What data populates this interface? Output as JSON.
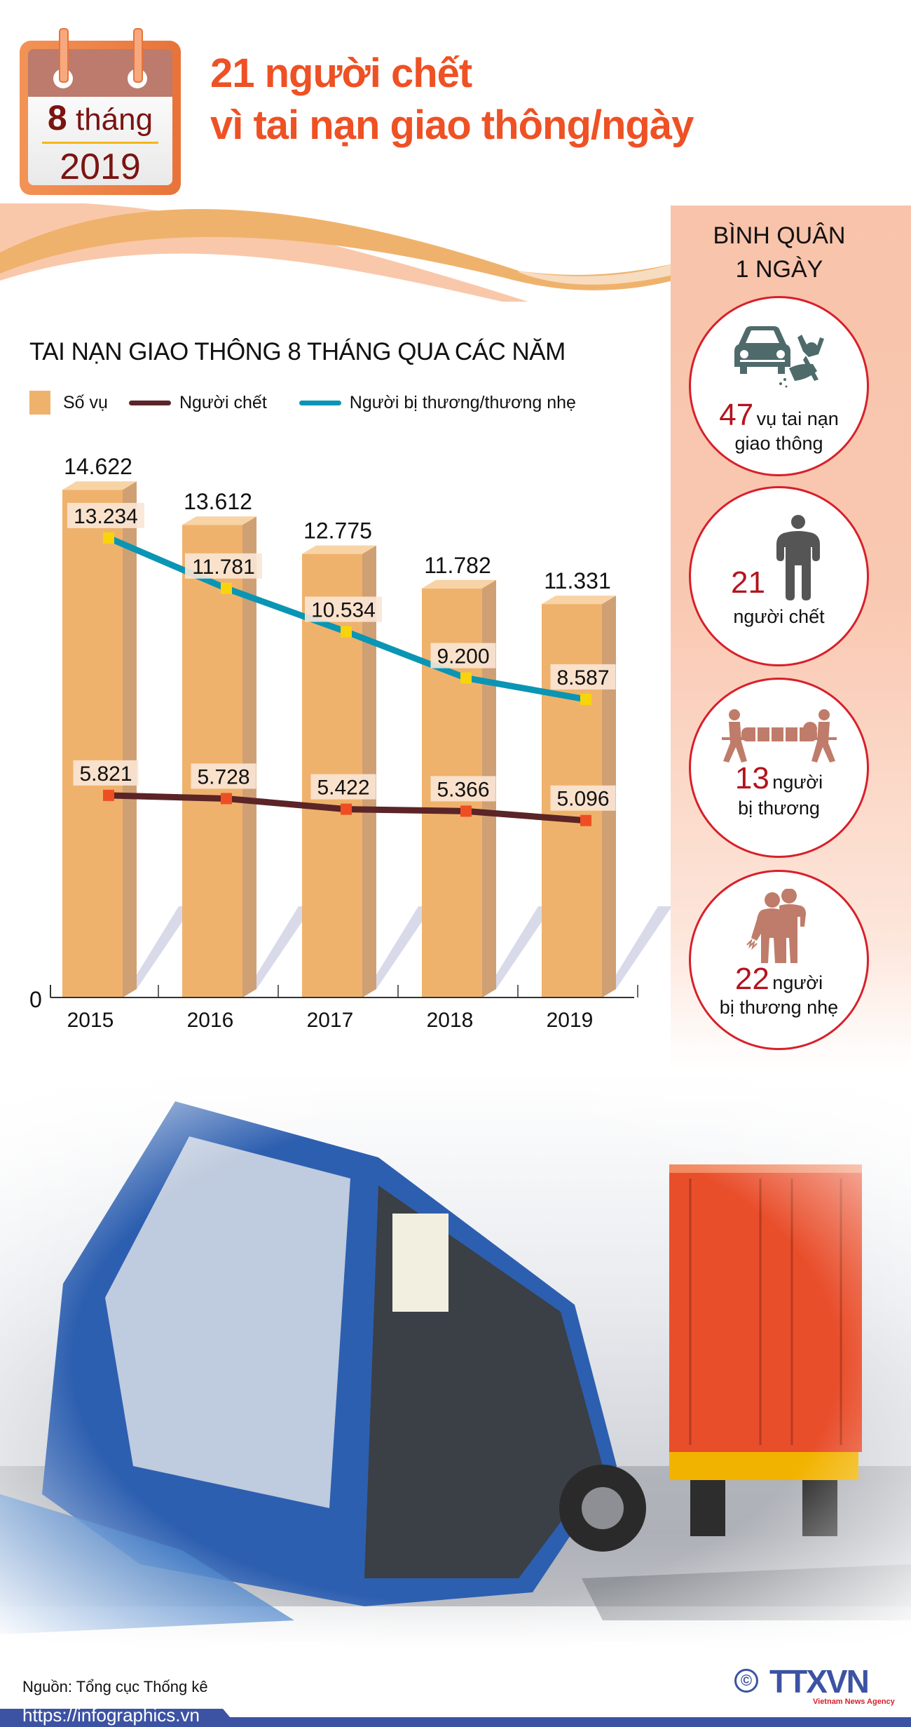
{
  "calendar": {
    "months_number": "8",
    "months_label": "tháng",
    "year": "2019"
  },
  "headline": {
    "line1": "21 người chết",
    "line2": "vì tai nạn giao thông/ngày"
  },
  "colors": {
    "title_orange": "#ee5124",
    "bar": "#efb26c",
    "bar_side": "#cfa074",
    "bar_top": "#f8d3a5",
    "deaths_line": "#5b2427",
    "deaths_marker": "#ef4e23",
    "injured_line": "#0b95b4",
    "injured_marker": "#f9d40b",
    "panel_bg": "#f8c3aa",
    "circle_border": "#d7202a",
    "number_red": "#b3141d",
    "footer_blue": "#3c53a3"
  },
  "chart_data": {
    "type": "bar",
    "title": "TAI NẠN GIAO THÔNG 8 THÁNG QUA CÁC NĂM",
    "xlabel": "",
    "ylabel": "",
    "y_tick_labels": [
      "0"
    ],
    "ylim": [
      0,
      15000
    ],
    "grid": false,
    "legend_position": "top-left",
    "categories": [
      "2015",
      "2016",
      "2017",
      "2018",
      "2019"
    ],
    "series": [
      {
        "name": "Số vụ",
        "type": "bar",
        "values": [
          14622,
          13612,
          12775,
          11782,
          11331
        ],
        "labels": [
          "14.622",
          "13.612",
          "12.775",
          "11.782",
          "11.331"
        ]
      },
      {
        "name": "Người chết",
        "type": "line",
        "values": [
          5821,
          5728,
          5422,
          5366,
          5096
        ],
        "labels": [
          "5.821",
          "5.728",
          "5.422",
          "5.366",
          "5.096"
        ]
      },
      {
        "name": "Người bị thương/thương nhẹ",
        "type": "line",
        "values": [
          13234,
          11781,
          10534,
          9200,
          8587
        ],
        "labels": [
          "13.234",
          "11.781",
          "10.534",
          "9.200",
          "8.587"
        ]
      }
    ]
  },
  "chart": {
    "title": "TAI NẠN GIAO THÔNG 8 THÁNG QUA CÁC NĂM",
    "legend": {
      "bars": "Số vụ",
      "deaths": "Người chết",
      "injured": "Người bị thương/thương nhẹ"
    },
    "zero_label": "0"
  },
  "daily": {
    "title_line1": "BÌNH QUÂN",
    "title_line2": "1 NGÀY",
    "items": [
      {
        "icon": "car-crash-icon",
        "number": "47",
        "text_inline": "vụ tai nạn",
        "text_line2": "giao thông"
      },
      {
        "icon": "person-icon",
        "number": "21",
        "text_inline": "",
        "text_line2": "người chết"
      },
      {
        "icon": "stretcher-icon",
        "number": "13",
        "text_inline": "người",
        "text_line2": "bị thương"
      },
      {
        "icon": "injured-people-icon",
        "number": "22",
        "text_inline": "người",
        "text_line2": "bị thương nhẹ"
      }
    ]
  },
  "photo": {
    "description": "Overturned blue truck and red container trailer at accident scene"
  },
  "footer": {
    "source": "Nguồn: Tổng cục Thống kê",
    "url": "https://infographics.vn",
    "copyright": "©",
    "logo_main_a": "TTX",
    "logo_main_b": "VN",
    "logo_sub": "Vietnam News Agency"
  }
}
